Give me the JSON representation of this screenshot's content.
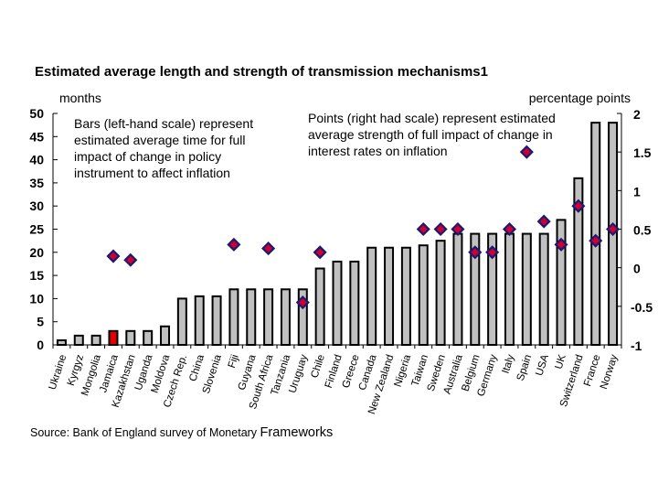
{
  "chart_data": {
    "type": "bar",
    "title": "Estimated average length and strength of transmission mechanisms1",
    "left_axis_unit": "months",
    "right_axis_unit": "percentage points",
    "bars_note": [
      "Bars  (left-hand scale) represent",
      "estimated average time for full",
      "impact of change in policy",
      "instrument to affect inflation"
    ],
    "points_note": [
      "Points (right had scale) represent estimated",
      "average strength of full impact of change in",
      "interest rates on inflation"
    ],
    "source": "Source:  Bank of England survey of Monetary",
    "source_tail": "Frameworks",
    "ylim_left": [
      0,
      50
    ],
    "yticks_left": [
      "0",
      "5",
      "10",
      "15",
      "20",
      "25",
      "30",
      "35",
      "40",
      "45",
      "50"
    ],
    "ylim_right": [
      -1,
      2
    ],
    "yticks_right": [
      "-1",
      "-0.5",
      "0",
      "0.5",
      "1",
      "1.5",
      "2"
    ],
    "categories": [
      "Ukraine",
      "Kyrgyz",
      "Mongolia",
      "Jamaica",
      "Kazakhstan",
      "Uganda",
      "Moldova",
      "Czech Rep.",
      "China",
      "Slovenia",
      "Fiji",
      "Guyana",
      "South Africa",
      "Tanzania",
      "Uruguay",
      "Chile",
      "Finland",
      "Greece",
      "Canada",
      "New Zealand",
      "Nigeria",
      "Taiwan",
      "Sweden",
      "Australia",
      "Belgium",
      "Germany",
      "Italy",
      "Spain",
      "USA",
      "UK",
      "Switzerland",
      "France",
      "Norway"
    ],
    "series": [
      {
        "type": "bar",
        "axis": "left",
        "values": [
          1,
          2,
          2,
          3,
          3,
          3,
          4,
          10,
          10.5,
          10.5,
          12,
          12,
          12,
          12,
          12,
          16.5,
          18,
          18,
          21,
          21,
          21,
          21.5,
          22.5,
          24,
          24,
          24,
          24,
          24,
          24,
          27,
          36,
          48,
          48
        ]
      },
      {
        "type": "scatter",
        "axis": "right",
        "values": [
          null,
          null,
          null,
          0.15,
          0.1,
          null,
          null,
          null,
          null,
          null,
          0.3,
          null,
          0.25,
          null,
          -0.45,
          0.2,
          null,
          null,
          null,
          null,
          null,
          0.5,
          0.5,
          0.5,
          0.2,
          0.2,
          0.5,
          1.5,
          0.6,
          0.3,
          0.8,
          0.35,
          0.5
        ]
      }
    ],
    "highlight_category": "Jamaica",
    "colors": {
      "bar": "#c0c0c0",
      "bar_highlight": "#e00000",
      "marker_fill": "#cc0033",
      "marker_edge": "#1a1a6e"
    },
    "grid": false
  }
}
